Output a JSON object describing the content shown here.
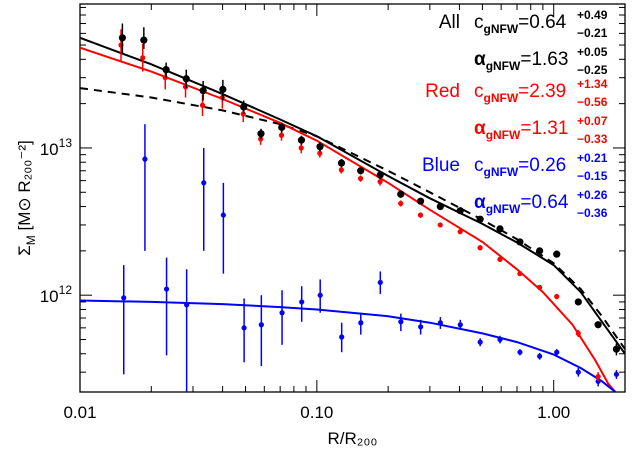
{
  "chart_data": {
    "type": "scatter",
    "title": "",
    "xlabel": "R/R₂₀₀",
    "ylabel_main": "Σ",
    "ylabel_sub": "M",
    "ylabel_units": "[M⊙ R₂₀₀⁻²]",
    "xscale": "log",
    "yscale": "log",
    "xlim": [
      0.01,
      2.0
    ],
    "ylim": [
      220000000000.0,
      95000000000000.0
    ],
    "x_ticks": [
      {
        "value": 0.01,
        "label": "0.01"
      },
      {
        "value": 0.1,
        "label": "0.10"
      },
      {
        "value": 1.0,
        "label": "1.00"
      }
    ],
    "y_ticks": [
      {
        "value": 1000000000000.0,
        "base": "10",
        "exp": "12"
      },
      {
        "value": 10000000000000.0,
        "base": "10",
        "exp": "13"
      }
    ],
    "annotations": [
      {
        "group": "All",
        "color": "#000000",
        "c_value": "0.64",
        "c_up": "+0.49",
        "c_down": "−0.21",
        "a_value": "1.63",
        "a_up": "+0.05",
        "a_down": "−0.25"
      },
      {
        "group": "Red",
        "color": "#ff0000",
        "c_value": "2.39",
        "c_up": "+1.34",
        "c_down": "−0.56",
        "a_value": "1.31",
        "a_up": "+0.07",
        "a_down": "−0.33"
      },
      {
        "group": "Blue",
        "color": "#0000ff",
        "c_value": "0.26",
        "c_up": "+0.21",
        "c_down": "−0.15",
        "a_value": "0.64",
        "a_up": "+0.26",
        "a_down": "−0.36"
      }
    ],
    "param_c": "c",
    "param_alpha": "α",
    "param_sub": "gNFW",
    "series": [
      {
        "name": "All",
        "color": "#000000",
        "points": [
          {
            "x": 0.0151,
            "y": 56000000000000.0,
            "lo": 44000000000000.0,
            "hi": 70000000000000.0
          },
          {
            "x": 0.0186,
            "y": 54000000000000.0,
            "lo": 47000000000000.0,
            "hi": 66000000000000.0
          },
          {
            "x": 0.0231,
            "y": 34000000000000.0,
            "lo": 30000000000000.0,
            "hi": 38000000000000.0
          },
          {
            "x": 0.0281,
            "y": 29500000000000.0,
            "lo": 25500000000000.0,
            "hi": 34000000000000.0
          },
          {
            "x": 0.0331,
            "y": 24500000000000.0,
            "lo": 21000000000000.0,
            "hi": 28500000000000.0
          },
          {
            "x": 0.0401,
            "y": 25000000000000.0,
            "lo": 21000000000000.0,
            "hi": 29000000000000.0
          },
          {
            "x": 0.0491,
            "y": 19000000000000.0,
            "lo": 17000000000000.0,
            "hi": 21000000000000.0
          },
          {
            "x": 0.0581,
            "y": 12500000000000.0,
            "lo": 11500000000000.0,
            "hi": 13500000000000.0
          },
          {
            "x": 0.0711,
            "y": 13800000000000.0,
            "lo": 12700000000000.0,
            "hi": 14900000000000.0
          },
          {
            "x": 0.0861,
            "y": 11300000000000.0,
            "lo": 10500000000000.0,
            "hi": 12100000000000.0
          },
          {
            "x": 0.1031,
            "y": 10200000000000.0,
            "lo": 9500000000000.0,
            "hi": 10900000000000.0
          },
          {
            "x": 0.1271,
            "y": 7900000000000.0,
            "lo": 7400000000000.0,
            "hi": 8400000000000.0
          },
          {
            "x": 0.1531,
            "y": 7000000000000.0,
            "lo": 6600000000000.0,
            "hi": 7400000000000.0
          },
          {
            "x": 0.1851,
            "y": 6550000000000.0,
            "lo": 6150000000000.0,
            "hi": 6950000000000.0
          },
          {
            "x": 0.2261,
            "y": 4850000000000.0,
            "lo": 4600000000000.0,
            "hi": 5100000000000.0
          },
          {
            "x": 0.2741,
            "y": 4350000000000.0,
            "lo": 4150000000000.0,
            "hi": 4550000000000.0
          },
          {
            "x": 0.3321,
            "y": 4000000000000.0,
            "lo": 3850000000000.0,
            "hi": 4150000000000.0
          },
          {
            "x": 0.4031,
            "y": 3750000000000.0,
            "lo": 3600000000000.0,
            "hi": 3900000000000.0
          },
          {
            "x": 0.4891,
            "y": 3280000000000.0,
            "lo": 3150000000000.0,
            "hi": 3410000000000.0
          },
          {
            "x": 0.5931,
            "y": 2820000000000.0,
            "lo": 2700000000000.0,
            "hi": 2940000000000.0
          },
          {
            "x": 0.7201,
            "y": 2300000000000.0,
            "lo": 2200000000000.0,
            "hi": 2400000000000.0
          },
          {
            "x": 0.8721,
            "y": 2000000000000.0,
            "lo": 1920000000000.0,
            "hi": 2080000000000.0
          },
          {
            "x": 1.0301,
            "y": 1900000000000.0,
            "lo": 1820000000000.0,
            "hi": 1980000000000.0
          },
          {
            "x": 1.2701,
            "y": 900000000000.0,
            "lo": 860000000000.0,
            "hi": 940000000000.0
          },
          {
            "x": 1.5401,
            "y": 630000000000.0,
            "lo": 600000000000.0,
            "hi": 660000000000.0
          },
          {
            "x": 1.8401,
            "y": 430000000000.0,
            "lo": 390000000000.0,
            "hi": 470000000000.0
          }
        ]
      },
      {
        "name": "Red",
        "color": "#ff0000",
        "points": [
          {
            "x": 0.0149,
            "y": 50000000000000.0,
            "lo": 39000000000000.0,
            "hi": 64000000000000.0
          },
          {
            "x": 0.0184,
            "y": 41000000000000.0,
            "lo": 33000000000000.0,
            "hi": 51000000000000.0
          },
          {
            "x": 0.0229,
            "y": 30000000000000.0,
            "lo": 25000000000000.0,
            "hi": 36000000000000.0
          },
          {
            "x": 0.0279,
            "y": 26000000000000.0,
            "lo": 22000000000000.0,
            "hi": 31000000000000.0
          },
          {
            "x": 0.0329,
            "y": 19500000000000.0,
            "lo": 16500000000000.0,
            "hi": 23000000000000.0
          },
          {
            "x": 0.0399,
            "y": 22000000000000.0,
            "lo": 18500000000000.0,
            "hi": 26000000000000.0
          },
          {
            "x": 0.0489,
            "y": 17000000000000.0,
            "lo": 15000000000000.0,
            "hi": 19000000000000.0
          },
          {
            "x": 0.0579,
            "y": 11500000000000.0,
            "lo": 10500000000000.0,
            "hi": 12500000000000.0
          },
          {
            "x": 0.0709,
            "y": 12200000000000.0,
            "lo": 11200000000000.0,
            "hi": 13200000000000.0
          },
          {
            "x": 0.0859,
            "y": 10000000000000.0,
            "lo": 9200000000000.0,
            "hi": 10800000000000.0
          },
          {
            "x": 0.1029,
            "y": 9200000000000.0,
            "lo": 8600000000000.0,
            "hi": 9800000000000.0
          },
          {
            "x": 0.1269,
            "y": 7100000000000.0,
            "lo": 6700000000000.0,
            "hi": 7500000000000.0
          },
          {
            "x": 0.1529,
            "y": 6200000000000.0,
            "lo": 5900000000000.0,
            "hi": 6500000000000.0
          },
          {
            "x": 0.1849,
            "y": 5900000000000.0,
            "lo": 5550000000000.0,
            "hi": 6250000000000.0
          },
          {
            "x": 0.2259,
            "y": 4200000000000.0,
            "lo": 4000000000000.0,
            "hi": 4400000000000.0
          },
          {
            "x": 0.2739,
            "y": 3500000000000.0,
            "lo": 3350000000000.0,
            "hi": 3650000000000.0
          },
          {
            "x": 0.3319,
            "y": 3000000000000.0,
            "lo": 2900000000000.0,
            "hi": 3100000000000.0
          },
          {
            "x": 0.4029,
            "y": 2700000000000.0,
            "lo": 2600000000000.0,
            "hi": 2800000000000.0
          },
          {
            "x": 0.4889,
            "y": 2100000000000.0,
            "lo": 2020000000000.0,
            "hi": 2180000000000.0
          },
          {
            "x": 0.5929,
            "y": 1750000000000.0,
            "lo": 1680000000000.0,
            "hi": 1820000000000.0
          },
          {
            "x": 0.7199,
            "y": 1400000000000.0,
            "lo": 1350000000000.0,
            "hi": 1450000000000.0
          },
          {
            "x": 0.8719,
            "y": 1130000000000.0,
            "lo": 1090000000000.0,
            "hi": 1170000000000.0
          },
          {
            "x": 1.0299,
            "y": 980000000000.0,
            "lo": 940000000000.0,
            "hi": 1020000000000.0
          },
          {
            "x": 1.2699,
            "y": 550000000000.0,
            "lo": 520000000000.0,
            "hi": 580000000000.0
          },
          {
            "x": 1.5399,
            "y": 280000000000.0,
            "lo": 260000000000.0,
            "hi": 300000000000.0
          }
        ]
      },
      {
        "name": "Blue",
        "color": "#0000ff",
        "points": [
          {
            "x": 0.0153,
            "y": 960000000000.0,
            "lo": 290000000000.0,
            "hi": 1600000000000.0
          },
          {
            "x": 0.0188,
            "y": 8400000000000.0,
            "lo": 2000000000000.0,
            "hi": 14500000000000.0
          },
          {
            "x": 0.0232,
            "y": 1100000000000.0,
            "lo": 390000000000.0,
            "hi": 1800000000000.0
          },
          {
            "x": 0.0282,
            "y": 860000000000.0,
            "lo": 220000000000.0,
            "hi": 1500000000000.0
          },
          {
            "x": 0.0333,
            "y": 5800000000000.0,
            "lo": 2000000000000.0,
            "hi": 10000000000000.0
          },
          {
            "x": 0.0403,
            "y": 3500000000000.0,
            "lo": 1400000000000.0,
            "hi": 5800000000000.0
          },
          {
            "x": 0.0493,
            "y": 600000000000.0,
            "lo": 350000000000.0,
            "hi": 950000000000.0
          },
          {
            "x": 0.0583,
            "y": 630000000000.0,
            "lo": 330000000000.0,
            "hi": 1000000000000.0
          },
          {
            "x": 0.0713,
            "y": 760000000000.0,
            "lo": 460000000000.0,
            "hi": 1080000000000.0
          },
          {
            "x": 0.0863,
            "y": 900000000000.0,
            "lo": 660000000000.0,
            "hi": 1150000000000.0
          },
          {
            "x": 0.1033,
            "y": 1000000000000.0,
            "lo": 760000000000.0,
            "hi": 1280000000000.0
          },
          {
            "x": 0.1273,
            "y": 520000000000.0,
            "lo": 410000000000.0,
            "hi": 650000000000.0
          },
          {
            "x": 0.1533,
            "y": 650000000000.0,
            "lo": 540000000000.0,
            "hi": 760000000000.0
          },
          {
            "x": 0.1853,
            "y": 1220000000000.0,
            "lo": 1020000000000.0,
            "hi": 1450000000000.0
          },
          {
            "x": 0.2263,
            "y": 660000000000.0,
            "lo": 570000000000.0,
            "hi": 750000000000.0
          },
          {
            "x": 0.2743,
            "y": 610000000000.0,
            "lo": 540000000000.0,
            "hi": 680000000000.0
          },
          {
            "x": 0.3323,
            "y": 650000000000.0,
            "lo": 590000000000.0,
            "hi": 710000000000.0
          },
          {
            "x": 0.4033,
            "y": 630000000000.0,
            "lo": 580000000000.0,
            "hi": 680000000000.0
          },
          {
            "x": 0.4893,
            "y": 480000000000.0,
            "lo": 450000000000.0,
            "hi": 510000000000.0
          },
          {
            "x": 0.5933,
            "y": 500000000000.0,
            "lo": 470000000000.0,
            "hi": 530000000000.0
          },
          {
            "x": 0.7203,
            "y": 410000000000.0,
            "lo": 390000000000.0,
            "hi": 430000000000.0
          },
          {
            "x": 0.8723,
            "y": 385000000000.0,
            "lo": 365000000000.0,
            "hi": 405000000000.0
          },
          {
            "x": 1.0303,
            "y": 410000000000.0,
            "lo": 390000000000.0,
            "hi": 430000000000.0
          },
          {
            "x": 1.2703,
            "y": 300000000000.0,
            "lo": 280000000000.0,
            "hi": 320000000000.0
          },
          {
            "x": 1.5403,
            "y": 260000000000.0,
            "lo": 240000000000.0,
            "hi": 280000000000.0
          },
          {
            "x": 1.8403,
            "y": 290000000000.0,
            "lo": 270000000000.0,
            "hi": 310000000000.0
          }
        ]
      }
    ],
    "fit_curves": [
      {
        "group": "All",
        "color": "#000000",
        "style": "solid",
        "points": [
          [
            0.01,
            56000000000000.0
          ],
          [
            0.02,
            37000000000000.0
          ],
          [
            0.04,
            23200000000000.0
          ],
          [
            0.07,
            15600000000000.0
          ],
          [
            0.1,
            12000000000000.0
          ],
          [
            0.2,
            6450000000000.0
          ],
          [
            0.3,
            4550000000000.0
          ],
          [
            0.5,
            3050000000000.0
          ],
          [
            0.7,
            2280000000000.0
          ],
          [
            1.0,
            1600000000000.0
          ],
          [
            1.3,
            1050000000000.0
          ],
          [
            1.6,
            660000000000.0
          ],
          [
            2.0,
            400000000000.0
          ]
        ]
      },
      {
        "group": "All",
        "color": "#000000",
        "style": "dashed",
        "points": [
          [
            0.01,
            25500000000000.0
          ],
          [
            0.02,
            22000000000000.0
          ],
          [
            0.04,
            18000000000000.0
          ],
          [
            0.07,
            14500000000000.0
          ],
          [
            0.1,
            12000000000000.0
          ],
          [
            0.2,
            7000000000000.0
          ],
          [
            0.3,
            5000000000000.0
          ],
          [
            0.5,
            3250000000000.0
          ],
          [
            0.7,
            2400000000000.0
          ],
          [
            1.0,
            1650000000000.0
          ],
          [
            1.3,
            1100000000000.0
          ],
          [
            1.6,
            720000000000.0
          ],
          [
            2.0,
            430000000000.0
          ]
        ]
      },
      {
        "group": "Red",
        "color": "#ff0000",
        "style": "solid",
        "points": [
          [
            0.01,
            48000000000000.0
          ],
          [
            0.02,
            33000000000000.0
          ],
          [
            0.04,
            21500000000000.0
          ],
          [
            0.07,
            14800000000000.0
          ],
          [
            0.1,
            11200000000000.0
          ],
          [
            0.2,
            5800000000000.0
          ],
          [
            0.3,
            3800000000000.0
          ],
          [
            0.5,
            2300000000000.0
          ],
          [
            0.7,
            1500000000000.0
          ],
          [
            0.9,
            1050000000000.0
          ],
          [
            1.2,
            630000000000.0
          ],
          [
            1.5,
            360000000000.0
          ],
          [
            1.7,
            250000000000.0
          ],
          [
            1.82,
            220000000000.0
          ]
        ]
      },
      {
        "group": "Blue",
        "color": "#0000ff",
        "style": "solid",
        "points": [
          [
            0.01,
            920000000000.0
          ],
          [
            0.02,
            900000000000.0
          ],
          [
            0.04,
            870000000000.0
          ],
          [
            0.07,
            830000000000.0
          ],
          [
            0.1,
            800000000000.0
          ],
          [
            0.2,
            720000000000.0
          ],
          [
            0.3,
            650000000000.0
          ],
          [
            0.5,
            550000000000.0
          ],
          [
            0.7,
            480000000000.0
          ],
          [
            1.0,
            395000000000.0
          ],
          [
            1.3,
            320000000000.0
          ],
          [
            1.6,
            260000000000.0
          ],
          [
            2.0,
            195000000000.0
          ]
        ]
      }
    ]
  }
}
